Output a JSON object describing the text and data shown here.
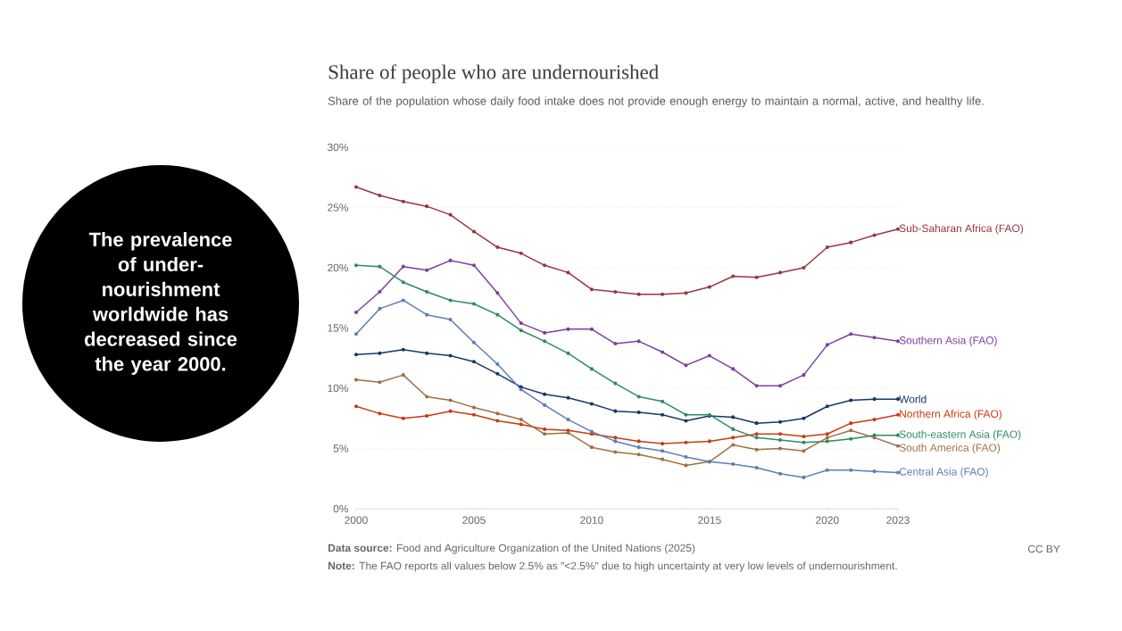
{
  "chart_data": {
    "type": "line",
    "title": "Share of people who are undernourished",
    "subtitle": "Share of the population whose daily food intake does not provide enough energy to maintain a normal, active, and healthy life.",
    "x": [
      2000,
      2001,
      2002,
      2003,
      2004,
      2005,
      2006,
      2007,
      2008,
      2009,
      2010,
      2011,
      2012,
      2013,
      2014,
      2015,
      2016,
      2017,
      2018,
      2019,
      2020,
      2021,
      2022,
      2023
    ],
    "xlim": [
      2000,
      2023
    ],
    "xticks": [
      2000,
      2005,
      2010,
      2015,
      2020,
      2023
    ],
    "ylim": [
      0,
      30
    ],
    "yticks": [
      {
        "value": 0,
        "label": "0%"
      },
      {
        "value": 5,
        "label": "5%"
      },
      {
        "value": 10,
        "label": "10%"
      },
      {
        "value": 15,
        "label": "15%"
      },
      {
        "value": 20,
        "label": "20%"
      },
      {
        "value": 25,
        "label": "25%"
      },
      {
        "value": 30,
        "label": "30%"
      }
    ],
    "grid": "y",
    "marker": "circle",
    "line_style": "solid",
    "series": [
      {
        "name": "Sub-Saharan Africa (FAO)",
        "color": "#9a3540",
        "values": [
          26.7,
          26.0,
          25.5,
          25.1,
          24.4,
          23.0,
          21.7,
          21.2,
          20.2,
          19.6,
          18.2,
          18.0,
          17.8,
          17.8,
          17.9,
          18.4,
          19.3,
          19.2,
          19.6,
          20.0,
          21.7,
          22.1,
          22.7,
          23.2
        ]
      },
      {
        "name": "Southern Asia (FAO)",
        "color": "#7e3fa0",
        "values": [
          16.3,
          18.0,
          20.1,
          19.8,
          20.6,
          20.2,
          17.9,
          15.4,
          14.6,
          14.9,
          14.9,
          13.7,
          13.9,
          13.0,
          11.9,
          12.7,
          11.6,
          10.2,
          10.2,
          11.1,
          13.6,
          14.5,
          14.2,
          13.9
        ]
      },
      {
        "name": "World",
        "color": "#18366b",
        "values": [
          12.8,
          12.9,
          13.2,
          12.9,
          12.7,
          12.2,
          11.2,
          10.1,
          9.5,
          9.2,
          8.7,
          8.1,
          8.0,
          7.8,
          7.3,
          7.7,
          7.6,
          7.1,
          7.2,
          7.5,
          8.5,
          9.0,
          9.1,
          9.1
        ]
      },
      {
        "name": "Northern Africa (FAO)",
        "color": "#c83b12",
        "values": [
          8.5,
          7.9,
          7.5,
          7.7,
          8.1,
          7.8,
          7.3,
          7.0,
          6.6,
          6.5,
          6.2,
          5.9,
          5.6,
          5.4,
          5.5,
          5.6,
          5.9,
          6.2,
          6.2,
          6.0,
          6.2,
          7.1,
          7.4,
          7.8
        ]
      },
      {
        "name": "South-eastern Asia (FAO)",
        "color": "#2e8b63",
        "values": [
          20.2,
          20.1,
          18.8,
          18.0,
          17.3,
          17.0,
          16.1,
          14.8,
          13.9,
          12.9,
          11.6,
          10.4,
          9.3,
          8.9,
          7.8,
          7.8,
          6.6,
          5.9,
          5.7,
          5.5,
          5.6,
          5.8,
          6.1,
          6.1
        ]
      },
      {
        "name": "South America (FAO)",
        "color": "#a07040",
        "values": [
          10.7,
          10.5,
          11.1,
          9.3,
          9.0,
          8.4,
          7.9,
          7.4,
          6.2,
          6.3,
          5.1,
          4.7,
          4.5,
          4.1,
          3.6,
          3.9,
          5.3,
          4.9,
          5.0,
          4.8,
          5.9,
          6.5,
          5.9,
          5.2
        ]
      },
      {
        "name": "Central Asia (FAO)",
        "color": "#5b7fb5",
        "values": [
          14.5,
          16.6,
          17.3,
          16.1,
          15.7,
          13.8,
          12.0,
          9.9,
          8.6,
          7.4,
          6.4,
          5.6,
          5.1,
          4.8,
          4.3,
          3.9,
          3.7,
          3.4,
          2.9,
          2.6,
          3.2,
          3.2,
          3.1,
          3.0
        ]
      }
    ],
    "annotations": [
      "The prevalence of under-nourishment worldwide has decreased since the year 2000.",
      "**Data source:** Food and Agriculture Organization of the United Nations (2025)",
      "CC BY",
      "**Note:** The FAO reports all values below 2.5% as \"<2.5%\" due to high uncertainty at very low levels of undernourishment."
    ]
  }
}
